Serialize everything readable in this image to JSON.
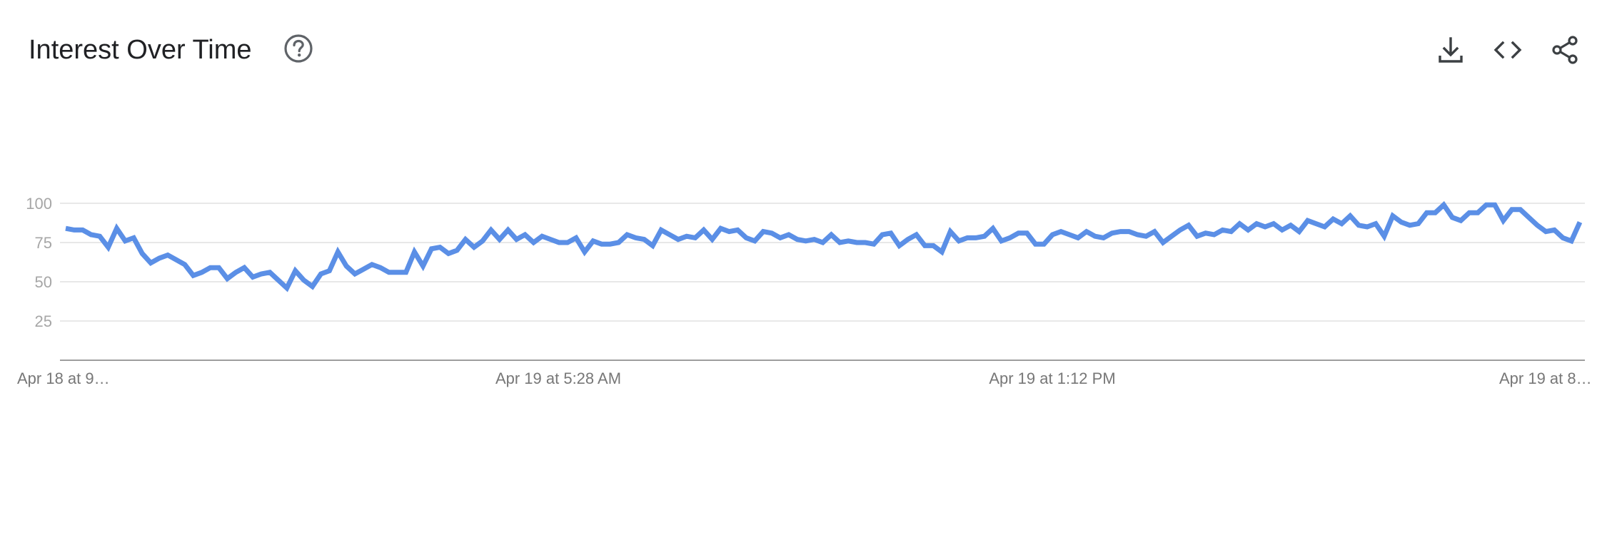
{
  "header": {
    "title": "Interest Over Time",
    "help_icon": "help-circle-icon",
    "actions": [
      {
        "name": "download",
        "icon": "download-icon"
      },
      {
        "name": "embed",
        "icon": "code-icon"
      },
      {
        "name": "share",
        "icon": "share-icon"
      }
    ]
  },
  "colors": {
    "line": "#5b8fe6",
    "grid": "#e0e0e0",
    "axis": "#9e9e9e",
    "title": "#202124",
    "icon": "#5f6368"
  },
  "chart_data": {
    "type": "line",
    "title": "Interest Over Time",
    "xlabel": "",
    "ylabel": "",
    "ylim": [
      0,
      100
    ],
    "yticks": [
      25,
      50,
      75,
      100
    ],
    "grid": true,
    "legend": "none",
    "x_tick_labels": [
      "Apr 18 at 9…",
      "Apr 19 at 5:28 AM",
      "Apr 19 at 1:12 PM",
      "Apr 19 at 8…"
    ],
    "series": [
      {
        "values": [
          84,
          83,
          83,
          80,
          79,
          72,
          84,
          76,
          78,
          68,
          62,
          65,
          67,
          64,
          61,
          54,
          56,
          59,
          59,
          52,
          56,
          59,
          53,
          55,
          56,
          51,
          46,
          57,
          51,
          47,
          55,
          57,
          69,
          60,
          55,
          58,
          61,
          59,
          56,
          56,
          56,
          69,
          60,
          71,
          72,
          68,
          70,
          77,
          72,
          76,
          83,
          77,
          83,
          77,
          80,
          75,
          79,
          77,
          75,
          75,
          78,
          69,
          76,
          74,
          74,
          75,
          80,
          78,
          77,
          73,
          83,
          80,
          77,
          79,
          78,
          83,
          77,
          84,
          82,
          83,
          78,
          76,
          82,
          81,
          78,
          80,
          77,
          76,
          77,
          75,
          80,
          75,
          76,
          75,
          75,
          74,
          80,
          81,
          73,
          77,
          80,
          73,
          73,
          69,
          82,
          76,
          78,
          78,
          79,
          84,
          76,
          78,
          81,
          81,
          74,
          74,
          80,
          82,
          80,
          78,
          82,
          79,
          78,
          81,
          82,
          82,
          80,
          79,
          82,
          75,
          79,
          83,
          86,
          79,
          81,
          80,
          83,
          82,
          87,
          83,
          87,
          85,
          87,
          83,
          86,
          82,
          89,
          87,
          85,
          90,
          87,
          92,
          86,
          85,
          87,
          79,
          92,
          88,
          86,
          87,
          94,
          94,
          99,
          91,
          89,
          94,
          94,
          99,
          99,
          89,
          96,
          96,
          91,
          86,
          82,
          83,
          78,
          76,
          88
        ]
      }
    ]
  }
}
